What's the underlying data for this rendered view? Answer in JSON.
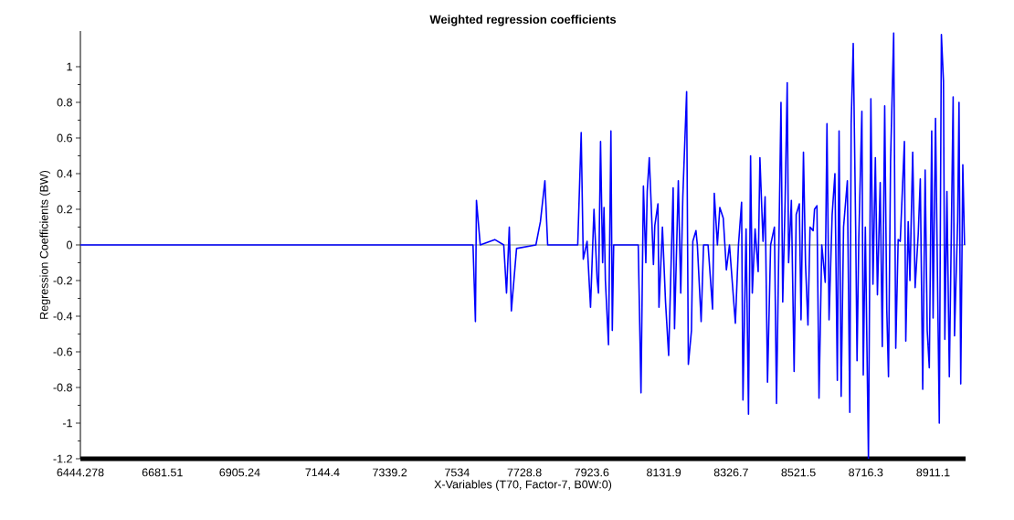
{
  "chart_data": {
    "type": "line",
    "title": "Weighted regression coefficients",
    "xlabel": "X-Variables (T70, Factor-7, B0W:0)",
    "ylabel": "Regression Coefficients (BW)",
    "xlim": [
      6444.278,
      9005
    ],
    "ylim": [
      -1.2,
      1.2
    ],
    "xticks": [
      6444.278,
      6681.51,
      6905.24,
      7144.4,
      7339.2,
      7534,
      7728.8,
      7923.6,
      8131.9,
      8326.7,
      8521.5,
      8716.3,
      8911.1
    ],
    "yticks": [
      -1.2,
      -1,
      -0.8,
      -0.6,
      -0.4,
      -0.2,
      0,
      0.2,
      0.4,
      0.6,
      0.8,
      1
    ],
    "marker": "none",
    "line_style": "solid",
    "ref_lines": [
      {
        "axis": "y",
        "value": 0,
        "color": "#7f8f7f"
      }
    ],
    "series": [
      {
        "color": "#0000ff",
        "x": [
          6444.278,
          7580,
          7587,
          7590,
          7601,
          7643,
          7669,
          7677,
          7685,
          7691,
          7706,
          7762,
          7775,
          7788,
          7796,
          7883,
          7893,
          7899,
          7910,
          7920,
          7930,
          7939,
          7943,
          7949,
          7955,
          7959,
          7963,
          7972,
          7979,
          7983,
          7987,
          8058,
          8066,
          8073,
          8080,
          8084,
          8090,
          8096,
          8102,
          8106,
          8115,
          8118,
          8128,
          8137,
          8146,
          8159,
          8163,
          8174,
          8181,
          8187,
          8198,
          8203,
          8212,
          8216,
          8225,
          8229,
          8240,
          8247,
          8260,
          8273,
          8278,
          8287,
          8294,
          8304,
          8313,
          8322,
          8339,
          8348,
          8357,
          8361,
          8370,
          8377,
          8383,
          8388,
          8396,
          8405,
          8410,
          8419,
          8425,
          8432,
          8441,
          8452,
          8458,
          8471,
          8476,
          8483,
          8489,
          8493,
          8501,
          8509,
          8515,
          8524,
          8529,
          8536,
          8542,
          8549,
          8555,
          8564,
          8568,
          8575,
          8581,
          8589,
          8599,
          8604,
          8610,
          8619,
          8627,
          8634,
          8639,
          8645,
          8652,
          8663,
          8670,
          8674,
          8680,
          8687,
          8691,
          8696,
          8705,
          8709,
          8715,
          8724,
          8731,
          8737,
          8744,
          8750,
          8758,
          8764,
          8771,
          8777,
          8782,
          8788,
          8797,
          8803,
          8810,
          8816,
          8828,
          8832,
          8839,
          8844,
          8852,
          8859,
          8868,
          8874,
          8881,
          8888,
          8894,
          8900,
          8907,
          8911,
          8918,
          8929,
          8935,
          8941,
          8945,
          8951,
          8958,
          8964,
          8969,
          8973,
          8982,
          8986,
          8991,
          8997,
          9002
        ],
        "values": [
          0,
          0,
          -0.43,
          0.25,
          0,
          0.03,
          0,
          -0.27,
          0.1,
          -0.37,
          -0.02,
          0,
          0.13,
          0.36,
          0,
          0,
          0.63,
          -0.08,
          0.02,
          -0.35,
          0.2,
          -0.19,
          -0.27,
          0.58,
          -0.1,
          0.21,
          -0.2,
          -0.56,
          0.64,
          -0.48,
          0,
          0,
          -0.83,
          0.33,
          -0.1,
          0.3,
          0.49,
          0.2,
          -0.11,
          0.11,
          0.23,
          -0.35,
          0.1,
          -0.32,
          -0.62,
          0.32,
          -0.47,
          0.36,
          -0.27,
          0.27,
          0.86,
          -0.67,
          -0.48,
          0.02,
          0.08,
          0,
          -0.43,
          0,
          0,
          -0.36,
          0.29,
          0,
          0.21,
          0.15,
          -0.14,
          0,
          -0.44,
          0,
          0.24,
          -0.87,
          0.09,
          -0.95,
          0.5,
          -0.27,
          0.09,
          -0.15,
          0.49,
          0.02,
          0.27,
          -0.77,
          0,
          0.1,
          -0.89,
          0.8,
          -0.32,
          0.25,
          0.91,
          -0.1,
          0.25,
          -0.71,
          0.17,
          0.23,
          -0.42,
          0.52,
          -0.11,
          -0.45,
          0.1,
          0.08,
          0.2,
          0.22,
          -0.86,
          0,
          -0.21,
          0.68,
          -0.42,
          0.17,
          0.4,
          -0.76,
          0.64,
          -0.85,
          0.1,
          0.36,
          -0.94,
          0.68,
          1.13,
          0.1,
          -0.65,
          0.03,
          0.75,
          -0.73,
          0.1,
          -1.2,
          0.82,
          -0.22,
          0.49,
          -0.28,
          0.35,
          -0.57,
          0.78,
          -0.36,
          -0.74,
          0.47,
          1.19,
          -0.58,
          0.03,
          0.02,
          0.58,
          -0.54,
          0.13,
          -0.2,
          0.52,
          -0.24,
          0.06,
          0.37,
          -0.81,
          0.42,
          -0.48,
          -0.69,
          0.64,
          -0.41,
          0.71,
          -1,
          1.18,
          0.92,
          -0.53,
          0.3,
          -0.74,
          0.1,
          0.83,
          -0.51,
          0.13,
          0.8,
          -0.78,
          0.45,
          0
        ]
      }
    ]
  }
}
